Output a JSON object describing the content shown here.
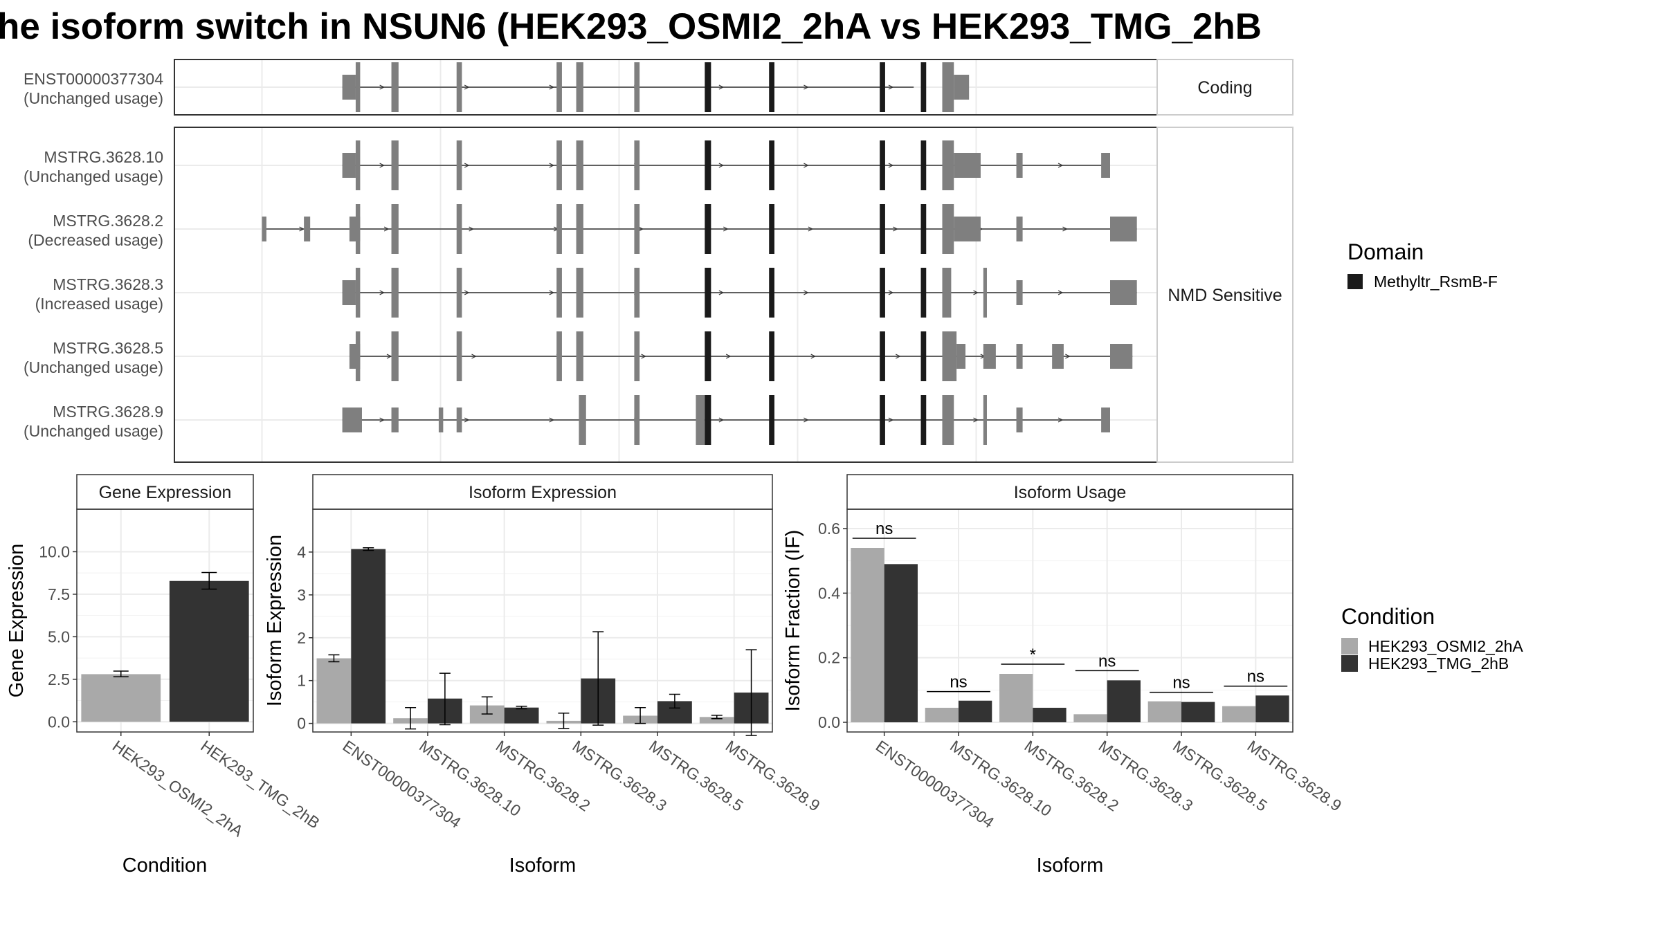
{
  "title": "he isoform switch in NSUN6 (HEK293_OSMI2_2hA vs HEK293_TMG_2hB",
  "colors": {
    "background": "#ffffff",
    "frame": "#333333",
    "strip_bg": "#ffffff",
    "grid": "#ebebeb",
    "exon_other": "#7f7f7f",
    "exon_domain": "#1a1a1a",
    "cond_a": "#a9a9a9",
    "cond_b": "#333333",
    "text": "#000000",
    "tick_text": "#4d4d4d"
  },
  "legend": {
    "domain_title": "Domain",
    "domain_items": [
      {
        "label": "Methyltr_RsmB-F",
        "color": "#1a1a1a"
      }
    ],
    "condition_title": "Condition",
    "condition_items": [
      {
        "label": "HEK293_OSMI2_2hA",
        "color": "#a9a9a9"
      },
      {
        "label": "HEK293_TMG_2hB",
        "color": "#333333"
      }
    ]
  },
  "chart_data": [
    {
      "type": "gene-structure",
      "x_domain": [
        0,
        1000
      ],
      "x_grid": [
        50,
        250,
        450,
        650,
        850
      ],
      "facets": [
        "Coding",
        "NMD Sensitive"
      ],
      "isoforms": [
        {
          "id": "ENST00000377304",
          "usage": "(Unchanged usage)",
          "facet": "Coding",
          "intron": [
            140,
            780
          ],
          "exons": [
            {
              "start": 140,
              "end": 155,
              "h": "s"
            },
            {
              "start": 155,
              "end": 160,
              "h": "t"
            },
            {
              "start": 195,
              "end": 203,
              "h": "t"
            },
            {
              "start": 268,
              "end": 274,
              "h": "t"
            },
            {
              "start": 380,
              "end": 386,
              "h": "t"
            },
            {
              "start": 402,
              "end": 410,
              "h": "t"
            },
            {
              "start": 467,
              "end": 473,
              "h": "t"
            },
            {
              "start": 546,
              "end": 553,
              "h": "t",
              "d": true
            },
            {
              "start": 618,
              "end": 624,
              "h": "t",
              "d": true
            },
            {
              "start": 742,
              "end": 748,
              "h": "t",
              "d": true
            },
            {
              "start": 788,
              "end": 794,
              "h": "t",
              "d": true
            },
            {
              "start": 812,
              "end": 825,
              "h": "t"
            },
            {
              "start": 825,
              "end": 842,
              "h": "s"
            }
          ]
        },
        {
          "id": "MSTRG.3628.10",
          "usage": "(Unchanged usage)",
          "facet": "NMD Sensitive",
          "intron": [
            140,
            1000
          ],
          "exons": [
            {
              "start": 140,
              "end": 155,
              "h": "s"
            },
            {
              "start": 155,
              "end": 160,
              "h": "t"
            },
            {
              "start": 195,
              "end": 203,
              "h": "t"
            },
            {
              "start": 268,
              "end": 274,
              "h": "t"
            },
            {
              "start": 380,
              "end": 386,
              "h": "t"
            },
            {
              "start": 402,
              "end": 410,
              "h": "t"
            },
            {
              "start": 467,
              "end": 473,
              "h": "t"
            },
            {
              "start": 546,
              "end": 553,
              "h": "t",
              "d": true
            },
            {
              "start": 618,
              "end": 624,
              "h": "t",
              "d": true
            },
            {
              "start": 742,
              "end": 748,
              "h": "t",
              "d": true
            },
            {
              "start": 788,
              "end": 794,
              "h": "t",
              "d": true
            },
            {
              "start": 812,
              "end": 825,
              "h": "t"
            },
            {
              "start": 825,
              "end": 855,
              "h": "s"
            },
            {
              "start": 895,
              "end": 902,
              "h": "s"
            },
            {
              "start": 990,
              "end": 1000,
              "h": "s"
            }
          ]
        },
        {
          "id": "MSTRG.3628.2",
          "usage": "(Decreased usage)",
          "facet": "NMD Sensitive",
          "intron": [
            50,
            1030
          ],
          "exons": [
            {
              "start": 50,
              "end": 55,
              "h": "s"
            },
            {
              "start": 97,
              "end": 104,
              "h": "s"
            },
            {
              "start": 148,
              "end": 160,
              "h": "s"
            },
            {
              "start": 155,
              "end": 160,
              "h": "t"
            },
            {
              "start": 195,
              "end": 203,
              "h": "t"
            },
            {
              "start": 268,
              "end": 274,
              "h": "t"
            },
            {
              "start": 380,
              "end": 386,
              "h": "t"
            },
            {
              "start": 402,
              "end": 410,
              "h": "t"
            },
            {
              "start": 467,
              "end": 473,
              "h": "t"
            },
            {
              "start": 546,
              "end": 553,
              "h": "t",
              "d": true
            },
            {
              "start": 618,
              "end": 624,
              "h": "t",
              "d": true
            },
            {
              "start": 742,
              "end": 748,
              "h": "t",
              "d": true
            },
            {
              "start": 788,
              "end": 794,
              "h": "t",
              "d": true
            },
            {
              "start": 812,
              "end": 825,
              "h": "t"
            },
            {
              "start": 825,
              "end": 855,
              "h": "s"
            },
            {
              "start": 895,
              "end": 902,
              "h": "s"
            },
            {
              "start": 1000,
              "end": 1030,
              "h": "s"
            }
          ]
        },
        {
          "id": "MSTRG.3628.3",
          "usage": "(Increased usage)",
          "facet": "NMD Sensitive",
          "intron": [
            140,
            1030
          ],
          "exons": [
            {
              "start": 140,
              "end": 155,
              "h": "s"
            },
            {
              "start": 155,
              "end": 160,
              "h": "t"
            },
            {
              "start": 195,
              "end": 203,
              "h": "t"
            },
            {
              "start": 268,
              "end": 274,
              "h": "t"
            },
            {
              "start": 380,
              "end": 386,
              "h": "t"
            },
            {
              "start": 402,
              "end": 410,
              "h": "t"
            },
            {
              "start": 467,
              "end": 473,
              "h": "t"
            },
            {
              "start": 546,
              "end": 553,
              "h": "t",
              "d": true
            },
            {
              "start": 618,
              "end": 624,
              "h": "t",
              "d": true
            },
            {
              "start": 742,
              "end": 748,
              "h": "t",
              "d": true
            },
            {
              "start": 788,
              "end": 794,
              "h": "t",
              "d": true
            },
            {
              "start": 812,
              "end": 822,
              "h": "t"
            },
            {
              "start": 858,
              "end": 862,
              "h": "t"
            },
            {
              "start": 895,
              "end": 902,
              "h": "s"
            },
            {
              "start": 1000,
              "end": 1030,
              "h": "s"
            }
          ]
        },
        {
          "id": "MSTRG.3628.5",
          "usage": "(Unchanged usage)",
          "facet": "NMD Sensitive",
          "intron": [
            148,
            1025
          ],
          "exons": [
            {
              "start": 148,
              "end": 160,
              "h": "s"
            },
            {
              "start": 155,
              "end": 160,
              "h": "t"
            },
            {
              "start": 195,
              "end": 203,
              "h": "t"
            },
            {
              "start": 268,
              "end": 274,
              "h": "t"
            },
            {
              "start": 380,
              "end": 386,
              "h": "t"
            },
            {
              "start": 402,
              "end": 410,
              "h": "t"
            },
            {
              "start": 467,
              "end": 473,
              "h": "t"
            },
            {
              "start": 546,
              "end": 553,
              "h": "t",
              "d": true
            },
            {
              "start": 618,
              "end": 624,
              "h": "t",
              "d": true
            },
            {
              "start": 742,
              "end": 748,
              "h": "t",
              "d": true
            },
            {
              "start": 788,
              "end": 794,
              "h": "t",
              "d": true
            },
            {
              "start": 812,
              "end": 828,
              "h": "t"
            },
            {
              "start": 828,
              "end": 838,
              "h": "s"
            },
            {
              "start": 858,
              "end": 872,
              "h": "s"
            },
            {
              "start": 895,
              "end": 902,
              "h": "s"
            },
            {
              "start": 935,
              "end": 948,
              "h": "s"
            },
            {
              "start": 1000,
              "end": 1025,
              "h": "s"
            }
          ]
        },
        {
          "id": "MSTRG.3628.9",
          "usage": "(Unchanged usage)",
          "facet": "NMD Sensitive",
          "intron": [
            140,
            1000
          ],
          "exons": [
            {
              "start": 140,
              "end": 162,
              "h": "s"
            },
            {
              "start": 195,
              "end": 203,
              "h": "s"
            },
            {
              "start": 248,
              "end": 253,
              "h": "s"
            },
            {
              "start": 268,
              "end": 274,
              "h": "s"
            },
            {
              "start": 405,
              "end": 413,
              "h": "t"
            },
            {
              "start": 467,
              "end": 473,
              "h": "t"
            },
            {
              "start": 536,
              "end": 546,
              "h": "t"
            },
            {
              "start": 546,
              "end": 553,
              "h": "t",
              "d": true
            },
            {
              "start": 618,
              "end": 624,
              "h": "t",
              "d": true
            },
            {
              "start": 742,
              "end": 748,
              "h": "t",
              "d": true
            },
            {
              "start": 788,
              "end": 794,
              "h": "t",
              "d": true
            },
            {
              "start": 812,
              "end": 825,
              "h": "t"
            },
            {
              "start": 858,
              "end": 862,
              "h": "t"
            },
            {
              "start": 895,
              "end": 902,
              "h": "s"
            },
            {
              "start": 990,
              "end": 1000,
              "h": "s"
            }
          ]
        }
      ]
    },
    {
      "type": "bar",
      "title": "Gene Expression",
      "xlabel": "Condition",
      "ylabel": "Gene Expression",
      "ylim": [
        -0.6,
        12.5
      ],
      "yticks": [
        0.0,
        2.5,
        5.0,
        7.5,
        10.0
      ],
      "ytick_labels": [
        "0.0",
        "2.5",
        "5.0",
        "7.5",
        "10.0"
      ],
      "categories": [
        "HEK293_OSMI2_2hA",
        "HEK293_TMG_2hB"
      ],
      "values": [
        2.8,
        8.28
      ],
      "errors": [
        [
          2.65,
          2.98
        ],
        [
          7.8,
          8.78
        ]
      ]
    },
    {
      "type": "bar",
      "title": "Isoform Expression",
      "xlabel": "Isoform",
      "ylabel": "Isoform Expression",
      "ylim": [
        -0.2,
        5.0
      ],
      "yticks": [
        0,
        1,
        2,
        3,
        4
      ],
      "ytick_labels": [
        "0",
        "1",
        "2",
        "3",
        "4"
      ],
      "categories": [
        "ENST00000377304",
        "MSTRG.3628.10",
        "MSTRG.3628.2",
        "MSTRG.3628.3",
        "MSTRG.3628.5",
        "MSTRG.3628.9"
      ],
      "series": [
        {
          "name": "HEK293_OSMI2_2hA",
          "values": [
            1.52,
            0.12,
            0.42,
            0.06,
            0.18,
            0.15
          ],
          "errors": [
            [
              1.44,
              1.6
            ],
            [
              -0.13,
              0.37
            ],
            [
              0.22,
              0.62
            ],
            [
              -0.12,
              0.24
            ],
            [
              0.0,
              0.37
            ],
            [
              0.11,
              0.19
            ]
          ]
        },
        {
          "name": "HEK293_TMG_2hB",
          "values": [
            4.07,
            0.58,
            0.37,
            1.05,
            0.52,
            0.72
          ],
          "errors": [
            [
              4.04,
              4.1
            ],
            [
              -0.03,
              1.17
            ],
            [
              0.34,
              0.4
            ],
            [
              -0.04,
              2.14
            ],
            [
              0.36,
              0.68
            ],
            [
              -0.28,
              1.72
            ]
          ]
        }
      ]
    },
    {
      "type": "bar",
      "title": "Isoform Usage",
      "xlabel": "Isoform",
      "ylabel": "Isoform Fraction (IF)",
      "ylim": [
        -0.03,
        0.66
      ],
      "yticks": [
        0.0,
        0.2,
        0.4,
        0.6
      ],
      "ytick_labels": [
        "0.0",
        "0.2",
        "0.4",
        "0.6"
      ],
      "categories": [
        "ENST00000377304",
        "MSTRG.3628.10",
        "MSTRG.3628.2",
        "MSTRG.3628.3",
        "MSTRG.3628.5",
        "MSTRG.3628.9"
      ],
      "series": [
        {
          "name": "HEK293_OSMI2_2hA",
          "values": [
            0.54,
            0.045,
            0.15,
            0.025,
            0.065,
            0.05
          ]
        },
        {
          "name": "HEK293_TMG_2hB",
          "values": [
            0.49,
            0.067,
            0.045,
            0.13,
            0.063,
            0.083
          ]
        }
      ],
      "significance": [
        {
          "label": "ns",
          "y": 0.57
        },
        {
          "label": "ns",
          "y": 0.095
        },
        {
          "label": "*",
          "y": 0.18
        },
        {
          "label": "ns",
          "y": 0.16
        },
        {
          "label": "ns",
          "y": 0.093
        },
        {
          "label": "ns",
          "y": 0.112
        }
      ]
    }
  ]
}
